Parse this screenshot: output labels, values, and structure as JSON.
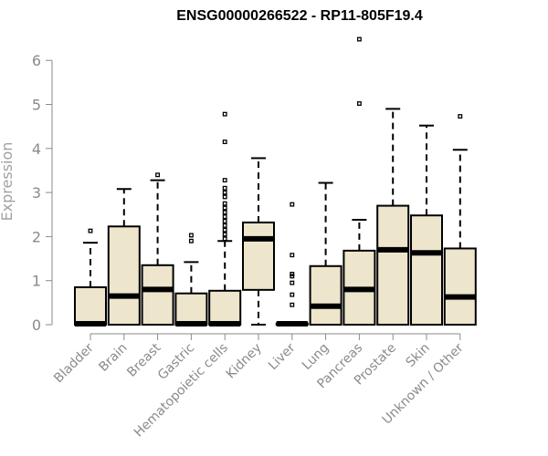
{
  "chart_data": {
    "type": "boxplot",
    "title": "ENSG00000266522 - RP11-805F19.4",
    "xlabel": "",
    "ylabel": "Expression",
    "ylim": [
      0,
      6.5
    ],
    "yticks": [
      0,
      1,
      2,
      3,
      4,
      5,
      6
    ],
    "colors": {
      "box_fill": "#ede5cc",
      "stroke": "#000000",
      "axis": "#8a8a8a"
    },
    "categories": [
      "Bladder",
      "Brain",
      "Breast",
      "Gastric",
      "Hematopoietic cells",
      "Kidney",
      "Liver",
      "Lung",
      "Pancreas",
      "Prostate",
      "Skin",
      "Unknown / Other"
    ],
    "boxes": [
      {
        "q1": 0.0,
        "median": 0.02,
        "q3": 0.85,
        "whisker_low": 0.0,
        "whisker_high": 1.86,
        "outliers": [
          2.13
        ]
      },
      {
        "q1": 0.0,
        "median": 0.65,
        "q3": 2.23,
        "whisker_low": 0.0,
        "whisker_high": 3.08,
        "outliers": []
      },
      {
        "q1": 0.0,
        "median": 0.8,
        "q3": 1.35,
        "whisker_low": 0.0,
        "whisker_high": 3.28,
        "outliers": [
          3.4
        ]
      },
      {
        "q1": 0.0,
        "median": 0.02,
        "q3": 0.71,
        "whisker_low": 0.0,
        "whisker_high": 1.42,
        "outliers": [
          1.9,
          2.03
        ]
      },
      {
        "q1": 0.0,
        "median": 0.02,
        "q3": 0.77,
        "whisker_low": 0.0,
        "whisker_high": 1.9,
        "outliers": [
          1.95,
          2.05,
          2.15,
          2.25,
          2.35,
          2.45,
          2.55,
          2.65,
          2.75,
          2.9,
          3.0,
          3.1,
          3.28,
          4.15,
          4.78
        ]
      },
      {
        "q1": 0.79,
        "median": 1.95,
        "q3": 2.32,
        "whisker_low": 0.0,
        "whisker_high": 3.78,
        "outliers": []
      },
      {
        "q1": 0.0,
        "median": 0.02,
        "q3": 0.03,
        "whisker_low": 0.0,
        "whisker_high": 0.05,
        "outliers": [
          0.45,
          0.68,
          0.95,
          1.1,
          1.15,
          1.58,
          2.73
        ]
      },
      {
        "q1": 0.0,
        "median": 0.42,
        "q3": 1.33,
        "whisker_low": 0.0,
        "whisker_high": 3.22,
        "outliers": []
      },
      {
        "q1": 0.0,
        "median": 0.8,
        "q3": 1.68,
        "whisker_low": 0.0,
        "whisker_high": 2.38,
        "outliers": [
          5.02,
          6.48
        ]
      },
      {
        "q1": 0.0,
        "median": 1.7,
        "q3": 2.7,
        "whisker_low": 0.0,
        "whisker_high": 4.9,
        "outliers": []
      },
      {
        "q1": 0.0,
        "median": 1.63,
        "q3": 2.48,
        "whisker_low": 0.0,
        "whisker_high": 4.52,
        "outliers": []
      },
      {
        "q1": 0.0,
        "median": 0.63,
        "q3": 1.73,
        "whisker_low": 0.0,
        "whisker_high": 3.97,
        "outliers": [
          4.73
        ]
      }
    ]
  }
}
